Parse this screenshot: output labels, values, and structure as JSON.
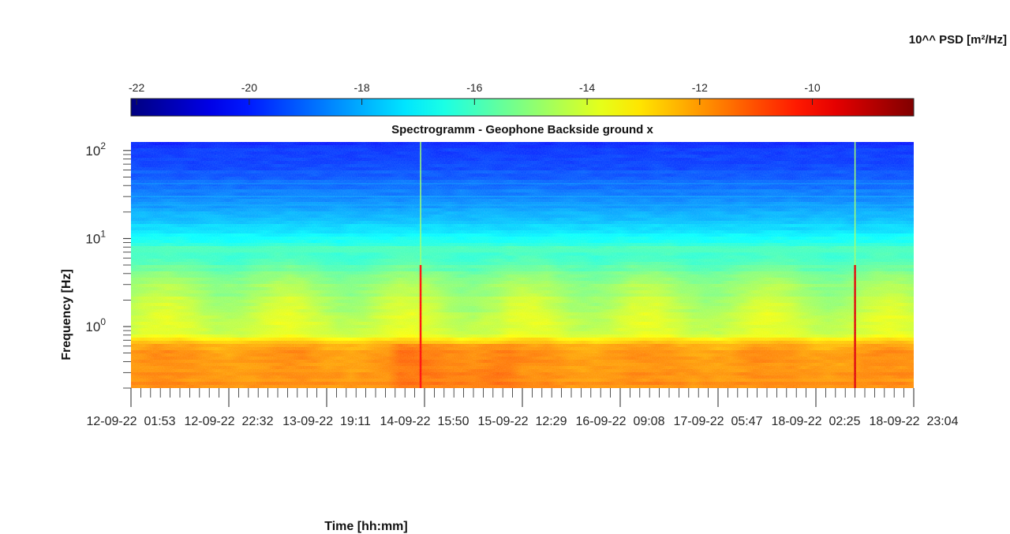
{
  "chart_data": {
    "type": "heatmap",
    "title": "Spectrogramm - Geophone Backside ground x",
    "xlabel": "Time [hh:mm]",
    "ylabel": "Frequency [Hz]",
    "y_scale": "log",
    "ylim_hz": [
      0.2,
      125
    ],
    "x_ticks": [
      "12-09-22  01:53",
      "12-09-22  22:32",
      "13-09-22  19:11",
      "14-09-22  15:50",
      "15-09-22  12:29",
      "16-09-22  09:08",
      "17-09-22  05:47",
      "18-09-22  02:25",
      "18-09-22  23:04"
    ],
    "y_ticks": [
      {
        "base": "10",
        "exp": "0"
      },
      {
        "base": "10",
        "exp": "1"
      },
      {
        "base": "10",
        "exp": "2"
      }
    ],
    "colorbar": {
      "label": "10^^ PSD [m²/Hz]",
      "ticks": [
        "-22",
        "-20",
        "-18",
        "-16",
        "-14",
        "-12",
        "-10"
      ],
      "range": [
        -22.1,
        -8.2
      ],
      "colormap": "jet",
      "placement": "top"
    },
    "profile_log10_psd_vs_freq": [
      {
        "f": 0.2,
        "v": -11.8
      },
      {
        "f": 0.5,
        "v": -11.9
      },
      {
        "f": 0.62,
        "v": -12.3
      },
      {
        "f": 0.8,
        "v": -13.9
      },
      {
        "f": 1.5,
        "v": -14.3
      },
      {
        "f": 3,
        "v": -14.8
      },
      {
        "f": 5,
        "v": -15.8
      },
      {
        "f": 7,
        "v": -16.3
      },
      {
        "f": 8,
        "v": -16.0
      },
      {
        "f": 9,
        "v": -16.6
      },
      {
        "f": 15,
        "v": -17.6
      },
      {
        "f": 30,
        "v": -18.6
      },
      {
        "f": 60,
        "v": -19.4
      },
      {
        "f": 125,
        "v": -19.9
      }
    ],
    "features": [
      {
        "type": "broadband_transient",
        "time": "14-09-22 ~15:40",
        "peak_log10_psd": -10.0
      },
      {
        "type": "broadband_transient",
        "time": "18-09-22 ~09:00",
        "peak_log10_psd": -9.5
      },
      {
        "type": "daily_cycle",
        "description": "higher energy 1–5 Hz during daytime"
      }
    ]
  }
}
